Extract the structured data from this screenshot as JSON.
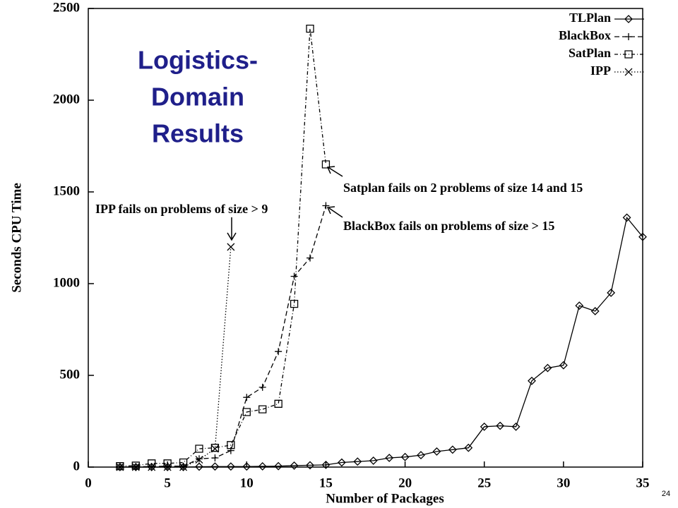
{
  "page_number": "24",
  "chart_data": {
    "type": "line",
    "title_lines": [
      "Logistics-",
      "Domain",
      "Results"
    ],
    "x_label": "Number of Packages",
    "y_label": "Seconds CPU Time",
    "xlim": [
      0,
      35
    ],
    "xticks": [
      0,
      5,
      10,
      15,
      20,
      25,
      30,
      35
    ],
    "ylim": [
      0,
      2500
    ],
    "yticks": [
      0,
      500,
      1000,
      1500,
      2000,
      2500
    ],
    "grid": false,
    "legend": "upper right",
    "series": [
      {
        "name": "TLPlan",
        "color": "#000000",
        "dash": "solid",
        "marker": "diamond",
        "x": [
          2,
          3,
          4,
          5,
          6,
          7,
          8,
          9,
          10,
          11,
          12,
          13,
          14,
          15,
          16,
          17,
          18,
          19,
          20,
          21,
          22,
          23,
          24,
          25,
          26,
          27,
          28,
          29,
          30,
          31,
          32,
          33,
          34,
          35
        ],
        "values": [
          0,
          0,
          0,
          0,
          0,
          2,
          3,
          3,
          3,
          4,
          5,
          8,
          10,
          12,
          25,
          30,
          35,
          50,
          55,
          65,
          85,
          95,
          105,
          220,
          225,
          220,
          470,
          540,
          555,
          880,
          850,
          950,
          1360,
          1255
        ]
      },
      {
        "name": "BlackBox",
        "color": "#000000",
        "dash": "dashed",
        "marker": "plus",
        "x": [
          2,
          3,
          4,
          5,
          6,
          7,
          8,
          9,
          10,
          11,
          12,
          13,
          14,
          15
        ],
        "values": [
          0,
          2,
          3,
          5,
          5,
          45,
          50,
          90,
          380,
          435,
          630,
          1040,
          1140,
          1425
        ]
      },
      {
        "name": "SatPlan",
        "color": "#000000",
        "dash": "dashdot",
        "marker": "square",
        "x": [
          2,
          3,
          4,
          5,
          6,
          7,
          8,
          9,
          10,
          11,
          12,
          13,
          14,
          15
        ],
        "values": [
          5,
          8,
          20,
          20,
          25,
          100,
          105,
          120,
          300,
          315,
          345,
          890,
          2390,
          1650
        ]
      },
      {
        "name": "IPP",
        "color": "#000000",
        "dash": "dotted",
        "marker": "x",
        "x": [
          2,
          3,
          4,
          5,
          6,
          7,
          8,
          9
        ],
        "values": [
          0,
          0,
          0,
          0,
          0,
          40,
          100,
          1200
        ]
      }
    ],
    "annotations": [
      "IPP fails on problems of size > 9",
      "Satplan fails on 2 problems of size 14 and 15",
      "BlackBox fails on problems of size > 15"
    ]
  }
}
